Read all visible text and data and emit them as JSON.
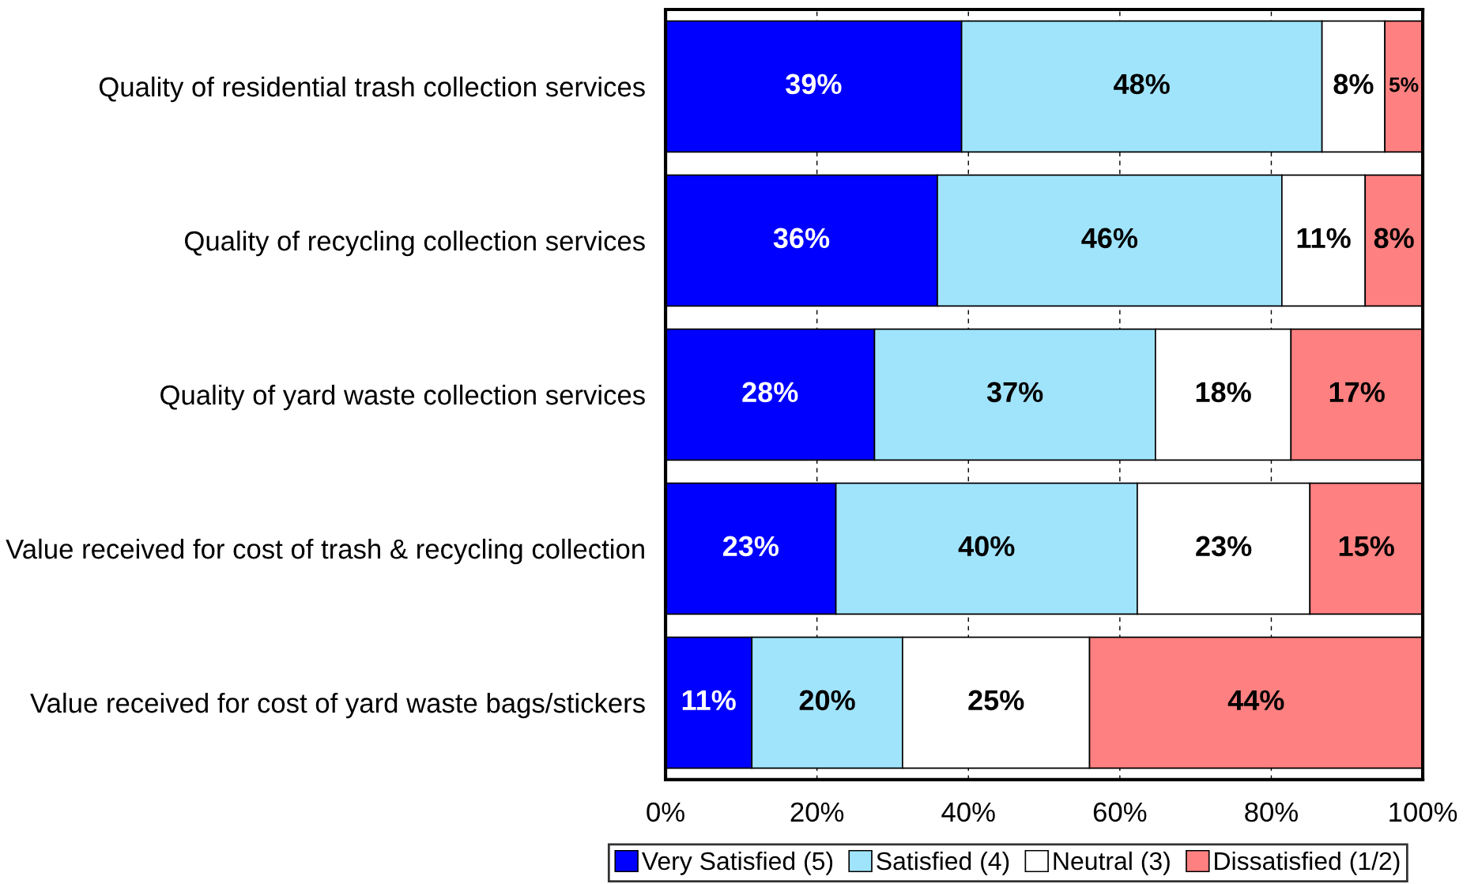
{
  "chart_data": {
    "type": "bar",
    "orientation": "horizontal",
    "stacked": true,
    "categories": [
      "Quality of residential trash collection services",
      "Quality of recycling collection services",
      "Quality of yard waste collection services",
      "Value received for cost of trash & recycling collection",
      "Value received for cost of yard waste bags/stickers"
    ],
    "series": [
      {
        "name": "Very Satisfied (5)",
        "color": "#0000ff",
        "values": [
          39.1,
          35.9,
          27.6,
          22.5,
          11.4
        ],
        "value_labels": [
          "39%",
          "36%",
          "28%",
          "23%",
          "11%"
        ]
      },
      {
        "name": "Satisfied (4)",
        "color": "#a0e4fc",
        "values": [
          47.6,
          45.5,
          37.1,
          39.8,
          19.9
        ],
        "value_labels": [
          "48%",
          "46%",
          "37%",
          "40%",
          "20%"
        ]
      },
      {
        "name": "Neutral (3)",
        "color": "#ffffff",
        "values": [
          8.3,
          11.0,
          17.9,
          22.8,
          24.7
        ],
        "value_labels": [
          "8%",
          "11%",
          "18%",
          "23%",
          "25%"
        ]
      },
      {
        "name": "Dissatisfied (1/2)",
        "color": "#ff8080",
        "values": [
          5.0,
          7.6,
          17.4,
          14.9,
          44.0
        ],
        "value_labels": [
          "5%",
          "8%",
          "17%",
          "15%",
          "44%"
        ]
      }
    ],
    "xlim": [
      0,
      100
    ],
    "xticks": [
      {
        "value": 0,
        "label": "0%"
      },
      {
        "value": 20,
        "label": "20%"
      },
      {
        "value": 40,
        "label": "40%"
      },
      {
        "value": 60,
        "label": "60%"
      },
      {
        "value": 80,
        "label": "80%"
      },
      {
        "value": 100,
        "label": "100%"
      }
    ],
    "grid": "x",
    "legend": "bottom"
  }
}
